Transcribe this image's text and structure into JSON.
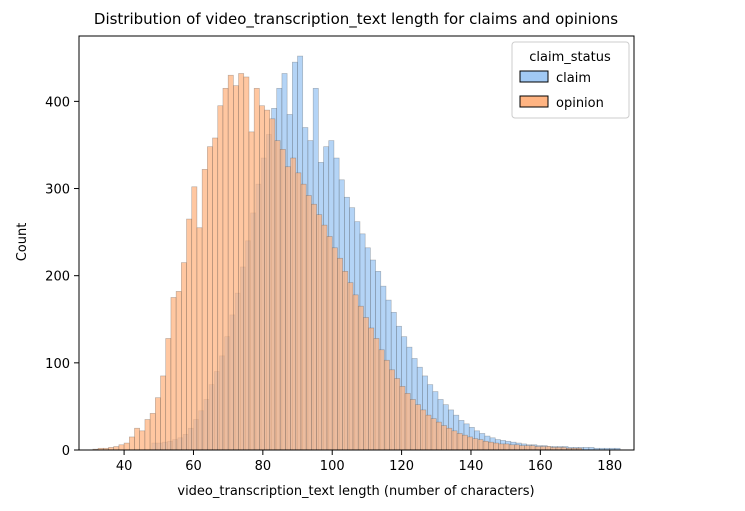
{
  "chart_data": {
    "type": "bar",
    "title": "Distribution of video_transcription_text length for claims and opinions",
    "xlabel": "video_transcription_text length (number of characters)",
    "ylabel": "Count",
    "xlim": [
      27,
      187
    ],
    "ylim": [
      0,
      475
    ],
    "xticks": [
      40,
      60,
      80,
      100,
      120,
      140,
      160,
      180
    ],
    "yticks": [
      0,
      100,
      200,
      300,
      400
    ],
    "bin_width": 1.5,
    "grid": false,
    "legend": {
      "title": "claim_status",
      "placement": "top-right"
    },
    "series": [
      {
        "name": "claim",
        "color": "#a1c9f4",
        "x": [
          48,
          49.5,
          51,
          52.5,
          54,
          55.5,
          57,
          58.5,
          60,
          61.5,
          63,
          64.5,
          66,
          67.5,
          69,
          70.5,
          72,
          73.5,
          75,
          76.5,
          78,
          79.5,
          81,
          82.5,
          84,
          85.5,
          87,
          88.5,
          90,
          91.5,
          93,
          94.5,
          96,
          97.5,
          99,
          100.5,
          102,
          103.5,
          105,
          106.5,
          108,
          109.5,
          111,
          112.5,
          114,
          115.5,
          117,
          118.5,
          120,
          121.5,
          123,
          124.5,
          126,
          127.5,
          129,
          130.5,
          132,
          133.5,
          135,
          136.5,
          138,
          139.5,
          141,
          142.5,
          144,
          145.5,
          147,
          148.5,
          150,
          151.5,
          153,
          154.5,
          156,
          157.5,
          159,
          160.5,
          162,
          163.5,
          165,
          166.5,
          168,
          169.5,
          171,
          172.5,
          174,
          175.5,
          177,
          178.5,
          180,
          181.5
        ],
        "values": [
          8,
          8,
          9,
          10,
          12,
          14,
          18,
          25,
          35,
          45,
          58,
          75,
          90,
          108,
          130,
          155,
          180,
          210,
          240,
          272,
          305,
          335,
          362,
          392,
          415,
          432,
          385,
          445,
          452,
          370,
          355,
          415,
          330,
          348,
          355,
          335,
          310,
          290,
          278,
          262,
          248,
          232,
          218,
          205,
          188,
          172,
          158,
          142,
          130,
          118,
          105,
          95,
          85,
          75,
          67,
          58,
          52,
          46,
          40,
          34,
          30,
          26,
          22,
          19,
          16,
          14,
          12,
          11,
          10,
          9,
          8,
          7,
          6,
          6,
          5,
          5,
          4,
          4,
          4,
          4,
          3,
          3,
          3,
          3,
          3,
          2,
          2,
          2,
          2,
          2
        ]
      },
      {
        "name": "opinion",
        "color": "#ffb482",
        "x": [
          31,
          32.5,
          34,
          35.5,
          37,
          38.5,
          40,
          41.5,
          43,
          44.5,
          46,
          47.5,
          49,
          50.5,
          52,
          53.5,
          55,
          56.5,
          58,
          59.5,
          61,
          62.5,
          64,
          65.5,
          67,
          68.5,
          70,
          71.5,
          73,
          74.5,
          76,
          77.5,
          79,
          80.5,
          82,
          83.5,
          85,
          86.5,
          88,
          89.5,
          91,
          92.5,
          94,
          95.5,
          97,
          98.5,
          100,
          101.5,
          103,
          104.5,
          106,
          107.5,
          109,
          110.5,
          112,
          113.5,
          115,
          116.5,
          118,
          119.5,
          121,
          122.5,
          124,
          125.5,
          127,
          128.5,
          130,
          131.5,
          133,
          134.5,
          136,
          137.5,
          139,
          140.5,
          142,
          143.5,
          145,
          146.5,
          148,
          149.5,
          151,
          152.5,
          154,
          155.5,
          157,
          158.5,
          160,
          161.5,
          163,
          164.5,
          166,
          167.5,
          169,
          170.5
        ],
        "values": [
          1,
          2,
          2,
          3,
          4,
          6,
          8,
          15,
          25,
          22,
          35,
          42,
          60,
          85,
          128,
          175,
          182,
          215,
          265,
          302,
          255,
          322,
          348,
          358,
          395,
          415,
          430,
          418,
          432,
          428,
          365,
          415,
          395,
          390,
          380,
          355,
          345,
          325,
          335,
          318,
          305,
          292,
          282,
          270,
          258,
          245,
          232,
          220,
          205,
          192,
          178,
          165,
          152,
          140,
          128,
          115,
          103,
          92,
          82,
          73,
          65,
          58,
          52,
          46,
          40,
          36,
          32,
          28,
          25,
          22,
          19,
          17,
          15,
          13,
          12,
          10,
          9,
          8,
          7,
          7,
          6,
          6,
          5,
          5,
          5,
          4,
          4,
          4,
          3,
          3,
          3,
          2,
          2,
          2
        ]
      }
    ]
  }
}
